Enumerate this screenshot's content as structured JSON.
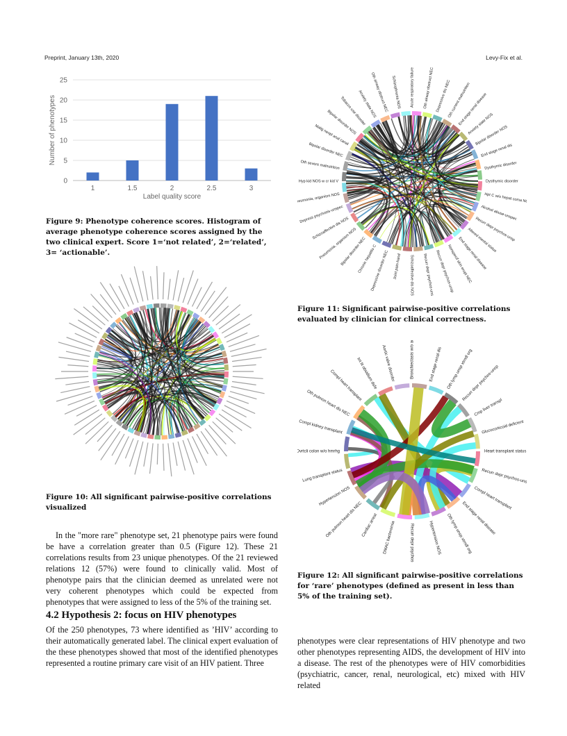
{
  "header": {
    "left": "Preprint, January 13th, 2020",
    "right": "Levy-Fix et al."
  },
  "chart_data": {
    "type": "bar",
    "categories": [
      "1",
      "1.5",
      "2",
      "2.5",
      "3"
    ],
    "values": [
      2,
      5,
      19,
      21,
      3
    ],
    "xlabel": "Label quality score",
    "ylabel": "Number of phenotypes",
    "ylim": [
      0,
      25
    ],
    "yticks": [
      0,
      5,
      10,
      15,
      20,
      25
    ],
    "grid": true,
    "bar_color": "#4472c4"
  },
  "fig9_caption": "Figure 9: Phenotype coherence scores. Histogram of average phenotype coherence scores assigned by the two clinical expert. Score 1=‘not related’, 2=‘related’, 3= ‘actionable’.",
  "fig10_caption": "Figure 10: All significant pairwise-positive correlations visualized",
  "fig11_caption": "Figure 11: Significant pairwise-positive correlations evaluated by clinician for clinical correctness.",
  "fig12_caption": "Figure 12: All significant pairwise-positive correlations for ‘rare’ phenotypes (defined as present in less than 5% of the training set).",
  "fig11_labels": [
    "Dysthymic disorder",
    "Hpt C w/o hepat coma NOS",
    "Alcohol abuse-unspec",
    "Recurr depr psychos-unsp",
    "Altered mental status",
    "End stage renal disease",
    "Nonspecif skin erupt NEC",
    "Recurr depr psychos-unsp",
    "Recurr depr psychos-unsp",
    "Schizoaffective dis NOS",
    "Joint pain-hand",
    "Depressive disorder NEC",
    "Chronic hepatitis C",
    "Bipolar disorder NEC",
    "Pneumonia, organism NOS",
    "Schizoaffective dis NOS",
    "Depress psychosis-unspec",
    "Pneumonia, organism NOS",
    "Hyp kid NOS w cr kid V",
    "Oth severe malnutrition",
    "Bipolar disorder NEC",
    "Malig neopl anal canal",
    "Bipolar disorder NOS",
    "Tobacco use disorder",
    "Anxiety state NOS",
    "Oth airway obstruct NEC",
    "Schizophrenia NOS",
    "Acute respiratory failure",
    "Oth airway obstruct NEC",
    "Depressive dis NEC",
    "Oth current malnutrition",
    "End stage renal disease",
    "Anxiety state NOS",
    "Bipolar disorder NOS",
    "End stage renal dis",
    "Dysthymic disorder"
  ],
  "fig12_labels": [
    "Heart transplant status",
    "Recurr depr psychos-unsp",
    "Compl heart transplant",
    "End stage renal disease",
    "Oth lymp unsp xtrndl org",
    "Hypertension NOS",
    "Recurr depr psychos-unsp",
    "DMAC bacteremia",
    "Cardiac arrest",
    "Oth pulmon heart dis NEC",
    "Hypertension NOS",
    "Lung transplant status",
    "Dvrtcli colon w/o hmrhg",
    "Compl kidney transplant",
    "Oth pulmon heart dis NEC",
    "Compl heart transplant",
    "Int lit obsidium dsfe",
    "Aortic valve disorder",
    "Bronchiectasis w/o ac exac",
    "End stage renal dis",
    "Oth lymp unsp xtrndl org",
    "Recurr depr psychos-unsp",
    "Cmp liver transpl",
    "Glucocorticoid deficient"
  ],
  "para1": "In the \"more rare\" phenotype set, 21 phenotype pairs were found be have a correlation greater than 0.5 (Figure 12). These 21 correlations results from 23 unique phenotypes. Of the 21 reviewed relations 12 (57%) were found to clinically valid. Most of phenotype pairs that the clinician deemed as unrelated were not very coherent phenotypes which could be expected from phenotypes that were assigned to less of the 5% of the training set.",
  "section_title": "4.2   Hypothesis 2: focus on HIV phenotypes",
  "para2": "Of the 250 phenotypes, 73 where identified as ’HIV’ according to their automatically generated label. The clinical expert evaluation of the these phenotypes showed that most of the identified phenotypes represented a routine primary care visit of an HIV patient. Three",
  "para3": "phenotypes were clear representations of HIV phenotype and two other phenotypes representing AIDS, the development of HIV into a disease. The rest of the phenotypes were of HIV comorbidities (psychiatric, cancer, renal, neurological, etc) mixed with HIV related"
}
